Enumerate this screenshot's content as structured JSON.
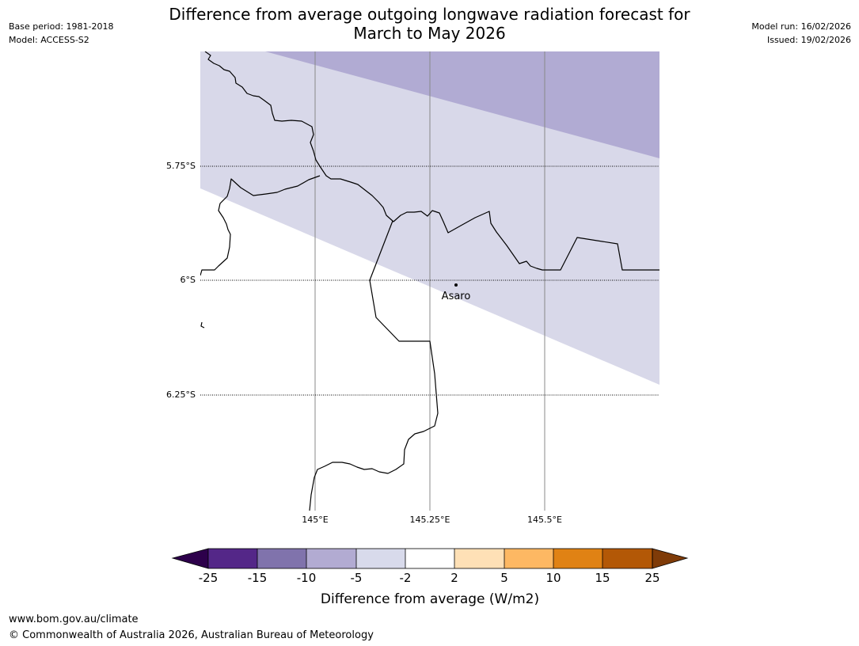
{
  "header": {
    "base_period": "Base period: 1981-2018",
    "model": "Model: ACCESS-S2",
    "model_run": "Model run: 16/02/2026",
    "issued": "Issued: 19/02/2026"
  },
  "title": {
    "line1": "Difference from average outgoing longwave radiation forecast for",
    "line2": "March to May 2026"
  },
  "map": {
    "latitude_labels": [
      "5.75°S",
      "6°S",
      "6.25°S"
    ],
    "longitude_labels": [
      "145°E",
      "145.25°E",
      "145.5°E"
    ],
    "location": {
      "name": "Asaro"
    },
    "colors": {
      "band_-10_-5": "#b1abd3",
      "band_-5_-2": "#d8d8e9",
      "land_border": "#000000",
      "gridline": "#888888"
    }
  },
  "legend": {
    "title": "Difference from average (W/m2)",
    "tick_labels": [
      "-25",
      "-15",
      "-10",
      "-5",
      "-2",
      "2",
      "5",
      "10",
      "15",
      "25"
    ],
    "colors": {
      "extend_low": "#2d004b",
      "c1": "#542788",
      "c2": "#8073ac",
      "c3": "#b2abd2",
      "c4": "#d8daeb",
      "c5": "#ffffff",
      "c6": "#fee0b6",
      "c7": "#fdb863",
      "c8": "#e08214",
      "c9": "#b35806",
      "extend_high": "#7f3b08"
    }
  },
  "footer": {
    "url": "www.bom.gov.au/climate",
    "copyright": "© Commonwealth of Australia 2026, Australian Bureau of Meteorology"
  }
}
